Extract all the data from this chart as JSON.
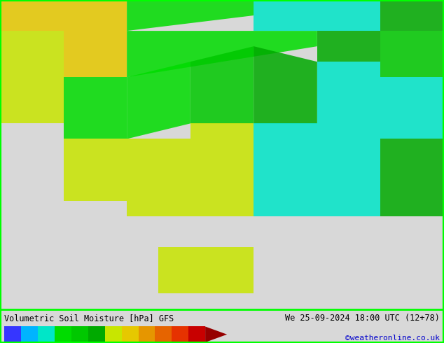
{
  "title_left": "Volumetric Soil Moisture [hPa] GFS",
  "title_right": "We 25-09-2024 18:00 UTC (12+78)",
  "credit": "©weatheronline.co.uk",
  "colorbar_values": [
    0,
    0.05,
    0.1,
    0.15,
    0.2,
    0.3,
    0.4,
    0.5,
    0.6,
    0.8,
    1,
    3,
    5
  ],
  "colorbar_colors": [
    "#3636ff",
    "#00b4ff",
    "#00e6c8",
    "#00dc00",
    "#00c800",
    "#00aa00",
    "#c8e600",
    "#e6c800",
    "#e69600",
    "#e66400",
    "#e63200",
    "#c80000",
    "#960000"
  ],
  "border_color": "#00ff00",
  "background_map_color": "#d8d8d8",
  "fig_bg": "#d8d8d8",
  "figwidth": 6.34,
  "figheight": 4.9,
  "map_image_path": null,
  "bottom_bar_height": 0.1,
  "colorbar_label_fontsize": 7.5,
  "title_fontsize": 8.5,
  "credit_fontsize": 8,
  "credit_color": "#0000cc"
}
